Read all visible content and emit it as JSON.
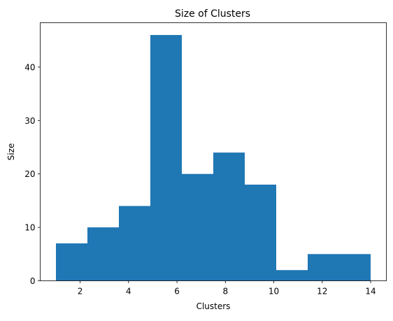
{
  "chart_data": {
    "type": "bar",
    "title": "Size of Clusters",
    "xlabel": "Clusters",
    "ylabel": "Size",
    "bin_edges": [
      1.0,
      2.3,
      3.6,
      4.9,
      6.2,
      7.5,
      8.8,
      10.1,
      11.4,
      12.7,
      14.0
    ],
    "values": [
      7,
      10,
      14,
      46,
      20,
      24,
      18,
      2,
      5,
      5
    ],
    "xlim": [
      0.35,
      14.65
    ],
    "ylim": [
      0,
      48.3
    ],
    "xticks": [
      2,
      4,
      6,
      8,
      10,
      12,
      14
    ],
    "yticks": [
      0,
      10,
      20,
      30,
      40
    ],
    "bar_color": "#1f77b4",
    "grid": false,
    "legend": "none"
  }
}
